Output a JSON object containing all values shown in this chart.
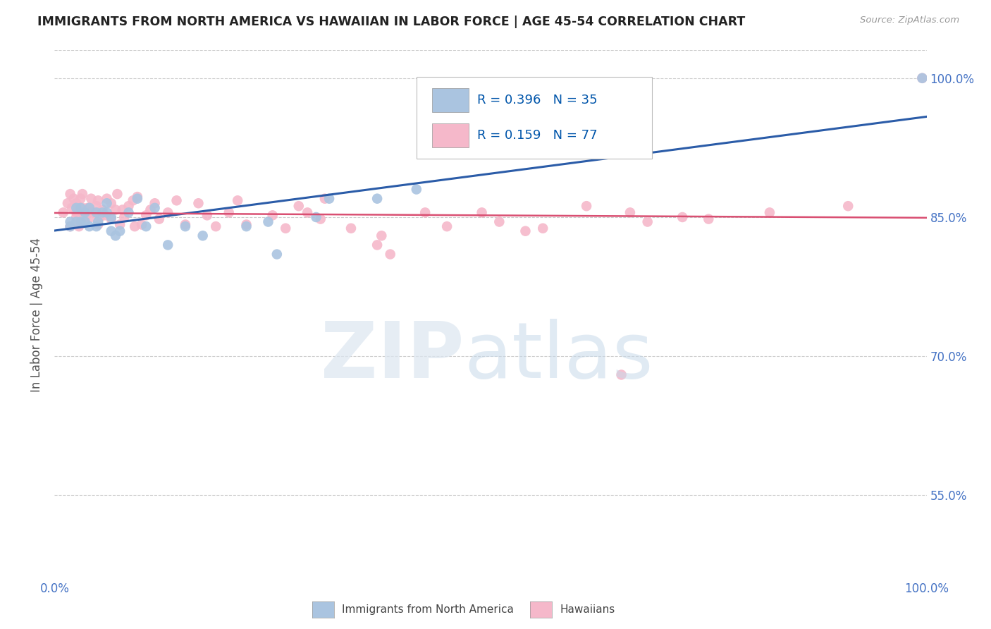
{
  "title": "IMMIGRANTS FROM NORTH AMERICA VS HAWAIIAN IN LABOR FORCE | AGE 45-54 CORRELATION CHART",
  "source_text": "Source: ZipAtlas.com",
  "ylabel": "In Labor Force | Age 45-54",
  "xlim": [
    0.0,
    1.0
  ],
  "ylim": [
    0.46,
    1.03
  ],
  "ytick_labels": [
    "55.0%",
    "70.0%",
    "85.0%",
    "100.0%"
  ],
  "ytick_values": [
    0.55,
    0.7,
    0.85,
    1.0
  ],
  "blue_color": "#aac4e0",
  "pink_color": "#f5b8ca",
  "blue_line_color": "#2b5ca8",
  "pink_line_color": "#d94f72",
  "blue_scatter_x": [
    0.018,
    0.018,
    0.025,
    0.025,
    0.03,
    0.03,
    0.035,
    0.035,
    0.04,
    0.04,
    0.048,
    0.048,
    0.05,
    0.055,
    0.06,
    0.06,
    0.065,
    0.065,
    0.07,
    0.075,
    0.085,
    0.095,
    0.105,
    0.115,
    0.13,
    0.15,
    0.17,
    0.22,
    0.245,
    0.255,
    0.3,
    0.315,
    0.37,
    0.415,
    0.995
  ],
  "blue_scatter_y": [
    0.845,
    0.84,
    0.86,
    0.845,
    0.86,
    0.845,
    0.855,
    0.845,
    0.86,
    0.84,
    0.84,
    0.855,
    0.845,
    0.855,
    0.855,
    0.865,
    0.85,
    0.835,
    0.83,
    0.835,
    0.855,
    0.87,
    0.84,
    0.86,
    0.82,
    0.84,
    0.83,
    0.84,
    0.845,
    0.81,
    0.85,
    0.87,
    0.87,
    0.88,
    1.0
  ],
  "pink_scatter_x": [
    0.01,
    0.015,
    0.018,
    0.018,
    0.02,
    0.022,
    0.025,
    0.025,
    0.025,
    0.028,
    0.03,
    0.03,
    0.032,
    0.032,
    0.035,
    0.038,
    0.04,
    0.042,
    0.042,
    0.045,
    0.048,
    0.05,
    0.05,
    0.052,
    0.055,
    0.058,
    0.06,
    0.065,
    0.065,
    0.07,
    0.072,
    0.075,
    0.078,
    0.08,
    0.085,
    0.09,
    0.092,
    0.095,
    0.1,
    0.105,
    0.11,
    0.115,
    0.12,
    0.13,
    0.14,
    0.15,
    0.165,
    0.175,
    0.185,
    0.2,
    0.21,
    0.22,
    0.25,
    0.265,
    0.28,
    0.29,
    0.305,
    0.31,
    0.34,
    0.37,
    0.375,
    0.385,
    0.425,
    0.45,
    0.49,
    0.51,
    0.54,
    0.56,
    0.61,
    0.65,
    0.66,
    0.68,
    0.72,
    0.75,
    0.82,
    0.91,
    0.995
  ],
  "pink_scatter_y": [
    0.855,
    0.865,
    0.84,
    0.875,
    0.86,
    0.87,
    0.855,
    0.865,
    0.85,
    0.84,
    0.855,
    0.87,
    0.86,
    0.875,
    0.85,
    0.86,
    0.855,
    0.87,
    0.85,
    0.855,
    0.862,
    0.868,
    0.842,
    0.85,
    0.858,
    0.852,
    0.87,
    0.848,
    0.865,
    0.858,
    0.875,
    0.842,
    0.858,
    0.85,
    0.862,
    0.868,
    0.84,
    0.872,
    0.842,
    0.852,
    0.858,
    0.865,
    0.848,
    0.855,
    0.868,
    0.842,
    0.865,
    0.852,
    0.84,
    0.855,
    0.868,
    0.842,
    0.852,
    0.838,
    0.862,
    0.855,
    0.848,
    0.87,
    0.838,
    0.82,
    0.83,
    0.81,
    0.855,
    0.84,
    0.855,
    0.845,
    0.835,
    0.838,
    0.862,
    0.68,
    0.855,
    0.845,
    0.85,
    0.848,
    0.855,
    0.862,
    1.0
  ],
  "legend_blue_r": "R = 0.396",
  "legend_blue_n": "N = 35",
  "legend_pink_r": "R = 0.159",
  "legend_pink_n": "N = 77"
}
